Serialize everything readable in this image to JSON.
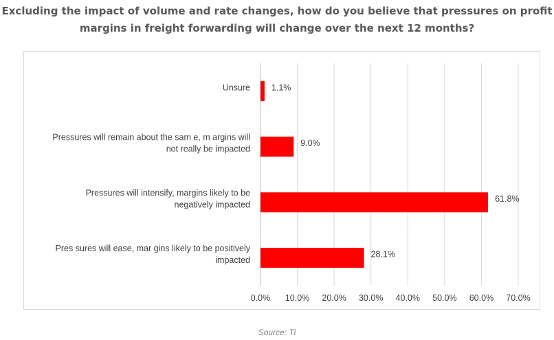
{
  "chart_data": {
    "type": "bar",
    "orientation": "horizontal",
    "title_lines": [
      "Excluding the impact of volume and rate changes, how do you believe that pressures on profit",
      "margins in freight forwarding will change over the next 12 months?"
    ],
    "categories": [
      [
        "Unsure"
      ],
      [
        "Pressures will remain about the sam e, m argins will",
        "not really be impacted"
      ],
      [
        "Pressures will intensify, margins likely to be",
        "negatively impacted"
      ],
      [
        "Pres sures will ease, mar gins likely to be positively",
        "impacted"
      ]
    ],
    "values": [
      1.1,
      9.0,
      61.8,
      28.1
    ],
    "value_labels": [
      "1.1%",
      "9.0%",
      "61.8%",
      "28.1%"
    ],
    "xlim": [
      0,
      70
    ],
    "xticks": [
      0,
      10,
      20,
      30,
      40,
      50,
      60,
      70
    ],
    "xtick_labels": [
      "0.0%",
      "10.0%",
      "20.0%",
      "30.0%",
      "40.0%",
      "50.0%",
      "60.0%",
      "70.0%"
    ],
    "bar_color": "#ff0000",
    "grid_color": "#d9d9d9",
    "grid": true
  },
  "source": "Source: Ti"
}
